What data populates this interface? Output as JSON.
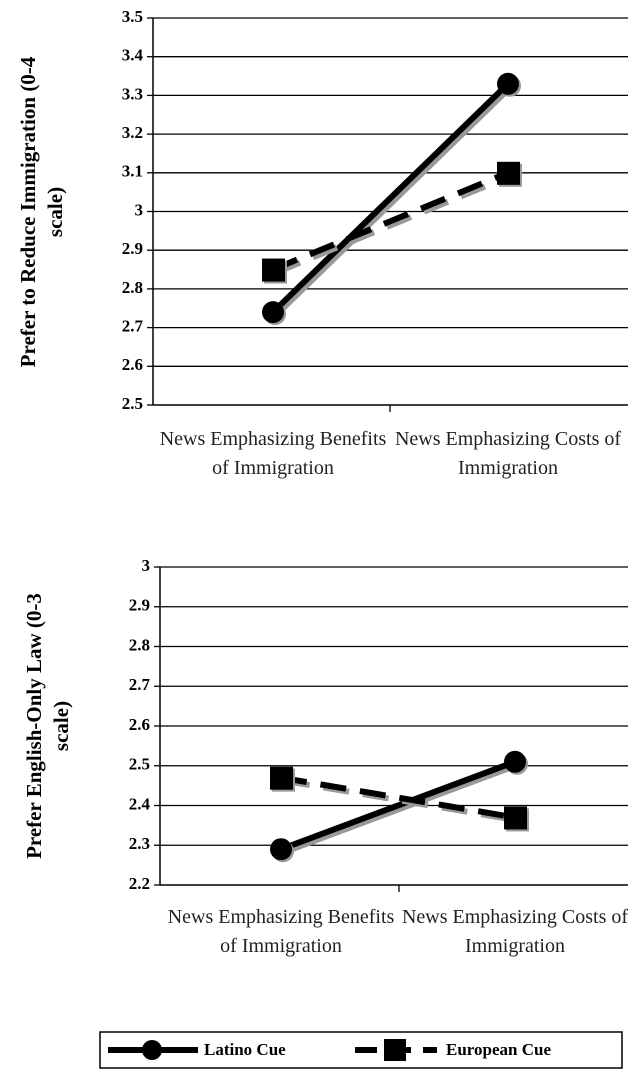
{
  "chart_data": [
    {
      "type": "line",
      "ylabel": "Prefer to Reduce Immigration (0-4 scale)",
      "categories": [
        "News Emphasizing Benefits of Immigration",
        "News Emphasizing Costs of Immigration"
      ],
      "series": [
        {
          "name": "Latino Cue",
          "color": "#000000",
          "values": [
            2.74,
            3.33
          ]
        },
        {
          "name": "European Cue",
          "color": "#000000",
          "values": [
            2.85,
            3.1
          ]
        }
      ],
      "ylim": [
        2.5,
        3.5
      ],
      "yticks": [
        2.5,
        2.6,
        2.7,
        2.8,
        2.9,
        3,
        3.1,
        3.2,
        3.3,
        3.4,
        3.5
      ],
      "grid": true
    },
    {
      "type": "line",
      "ylabel": "Prefer English-Only Law (0-3 scale)",
      "categories": [
        "News Emphasizing Benefits of Immigration",
        "News Emphasizing Costs of Immigration"
      ],
      "series": [
        {
          "name": "Latino Cue",
          "color": "#000000",
          "values": [
            2.29,
            2.51
          ]
        },
        {
          "name": "European Cue",
          "color": "#000000",
          "values": [
            2.47,
            2.37
          ]
        }
      ],
      "ylim": [
        2.2,
        3
      ],
      "yticks": [
        2.2,
        2.3,
        2.4,
        2.5,
        2.6,
        2.7,
        2.8,
        2.9,
        3
      ],
      "grid": true
    }
  ]
}
